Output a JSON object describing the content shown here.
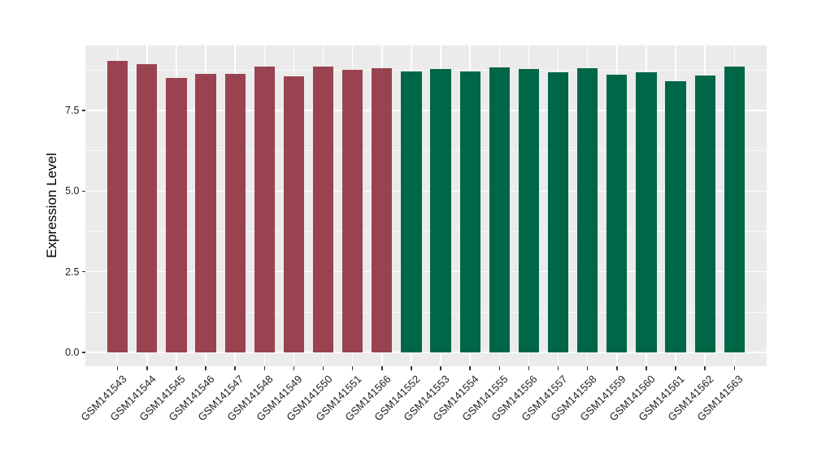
{
  "chart_data": {
    "type": "bar",
    "title": "",
    "xlabel": "",
    "ylabel": "Expression Level",
    "categories": [
      "GSM141543",
      "GSM141544",
      "GSM141545",
      "GSM141546",
      "GSM141547",
      "GSM141548",
      "GSM141549",
      "GSM141550",
      "GSM141551",
      "GSM141566",
      "GSM141552",
      "GSM141553",
      "GSM141554",
      "GSM141555",
      "GSM141556",
      "GSM141557",
      "GSM141558",
      "GSM141559",
      "GSM141560",
      "GSM141561",
      "GSM141562",
      "GSM141563"
    ],
    "values": [
      9.05,
      8.94,
      8.52,
      8.63,
      8.63,
      8.87,
      8.56,
      8.86,
      8.76,
      8.82,
      8.71,
      8.78,
      8.71,
      8.84,
      8.79,
      8.68,
      8.8,
      8.61,
      8.69,
      8.42,
      8.59,
      8.87
    ],
    "bar_groups": [
      "group1",
      "group1",
      "group1",
      "group1",
      "group1",
      "group1",
      "group1",
      "group1",
      "group1",
      "group1",
      "group2",
      "group2",
      "group2",
      "group2",
      "group2",
      "group2",
      "group2",
      "group2",
      "group2",
      "group2",
      "group2",
      "group2"
    ],
    "group_colors": {
      "group1": "#9A4350",
      "group2": "#006648"
    },
    "yticks": {
      "values": [
        0,
        2.5,
        5,
        7.5
      ],
      "labels": [
        "0.0",
        "2.5",
        "5.0",
        "7.5"
      ]
    },
    "minor_gridlines": [
      1.25,
      3.75,
      6.25,
      8.75
    ],
    "ylim": [
      -0.45,
      9.5
    ],
    "grid": "major and minor horizontal + major vertical, white on grey panel",
    "legend": "none",
    "panel_background": "#EBEBEB",
    "grid_color": "#FFFFFF",
    "axis_text_color": "#1f1f1f",
    "tick_mark_color": "#333333",
    "plot_background": "#FFFFFF"
  }
}
